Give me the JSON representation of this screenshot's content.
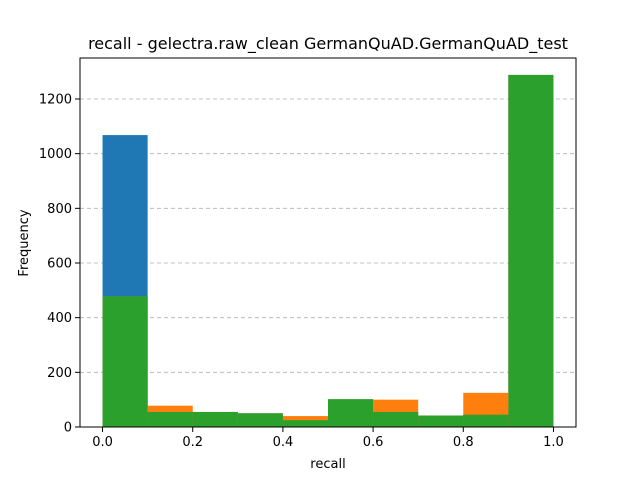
{
  "chart_data": {
    "type": "bar",
    "title": "recall - gelectra.raw_clean GermanQuAD.GermanQuAD_test",
    "xlabel": "recall",
    "ylabel": "Frequency",
    "xlim": [
      -0.05,
      1.05
    ],
    "ylim": [
      0,
      1350
    ],
    "grid": "y-dashed",
    "bin_edges": [
      0.0,
      0.1,
      0.2,
      0.3,
      0.4,
      0.5,
      0.6,
      0.7,
      0.8,
      0.9,
      1.0
    ],
    "xticks": [
      0.0,
      0.2,
      0.4,
      0.6,
      0.8,
      1.0
    ],
    "xtick_labels": [
      "0.0",
      "0.2",
      "0.4",
      "0.6",
      "0.8",
      "1.0"
    ],
    "yticks": [
      0,
      200,
      400,
      600,
      800,
      1000,
      1200
    ],
    "ytick_labels": [
      "0",
      "200",
      "400",
      "600",
      "800",
      "1000",
      "1200"
    ],
    "series": [
      {
        "color": "#1f77b4",
        "values": [
          1068,
          55,
          55,
          50,
          22,
          100,
          55,
          42,
          45,
          1288
        ]
      },
      {
        "color": "#ff7f0e",
        "values": [
          478,
          78,
          55,
          50,
          40,
          100,
          100,
          42,
          125,
          1288
        ]
      },
      {
        "color": "#2ca02c",
        "values": [
          478,
          55,
          55,
          50,
          25,
          102,
          55,
          42,
          45,
          1288
        ]
      }
    ]
  }
}
